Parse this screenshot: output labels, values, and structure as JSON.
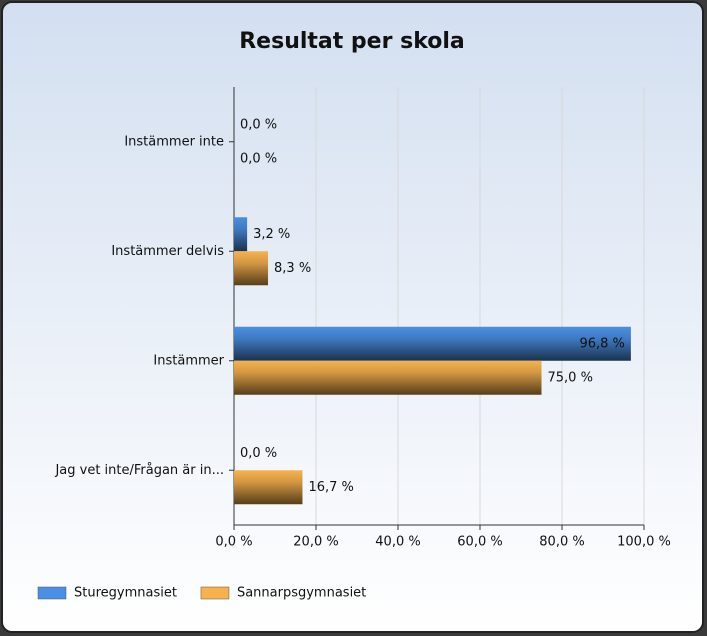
{
  "chart_data": {
    "type": "hbar",
    "title": "Resultat per skola",
    "categories": [
      "Instämmer inte",
      "Instämmer delvis",
      "Instämmer",
      "Jag vet inte/Frågan är in..."
    ],
    "series": [
      {
        "name": "Sturegymnasiet",
        "color": "#4a8fe3",
        "values": [
          0,
          3.2,
          96.8,
          0
        ],
        "value_labels": [
          "0,0 %",
          "3,2 %",
          "96,8 %",
          "0,0 %"
        ]
      },
      {
        "name": "Sannarpsgymnasiet",
        "color": "#f7b24e",
        "values": [
          0,
          8.3,
          75.0,
          16.7
        ],
        "value_labels": [
          "0,0 %",
          "8,3 %",
          "75,0 %",
          "16,7 %"
        ]
      }
    ],
    "xlim": [
      0,
      100
    ],
    "xticks": [
      {
        "value": 0,
        "label": "0,0 %"
      },
      {
        "value": 20,
        "label": "20,0 %"
      },
      {
        "value": 40,
        "label": "40,0 %"
      },
      {
        "value": 60,
        "label": "60,0 %"
      },
      {
        "value": 80,
        "label": "80,0 %"
      },
      {
        "value": 100,
        "label": "100,0 %"
      }
    ],
    "grid": true,
    "legend": "bottom-left"
  }
}
